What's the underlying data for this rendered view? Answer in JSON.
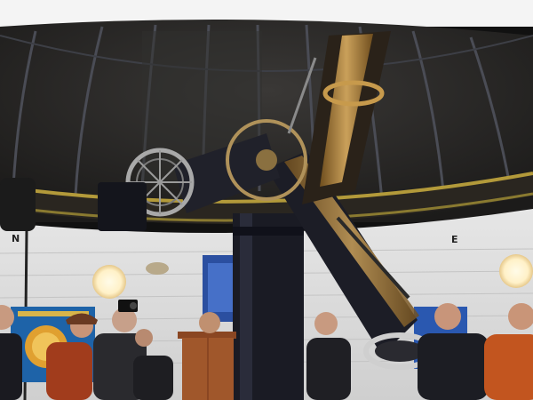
{
  "scene": {
    "wall_letters": {
      "north": "N",
      "east": "E"
    },
    "colors": {
      "dome": "#2b2a29",
      "dome_ribs": "#4a4c55",
      "wall": "#dcdcdc",
      "railing": "#b39a3a",
      "brass": "#b8862e",
      "pier": "#1a1b24",
      "lamp": "#fff1c8",
      "lectern": "#a0572b"
    },
    "icons": [
      "telescope-icon",
      "lamp-icon",
      "camera-icon"
    ]
  }
}
